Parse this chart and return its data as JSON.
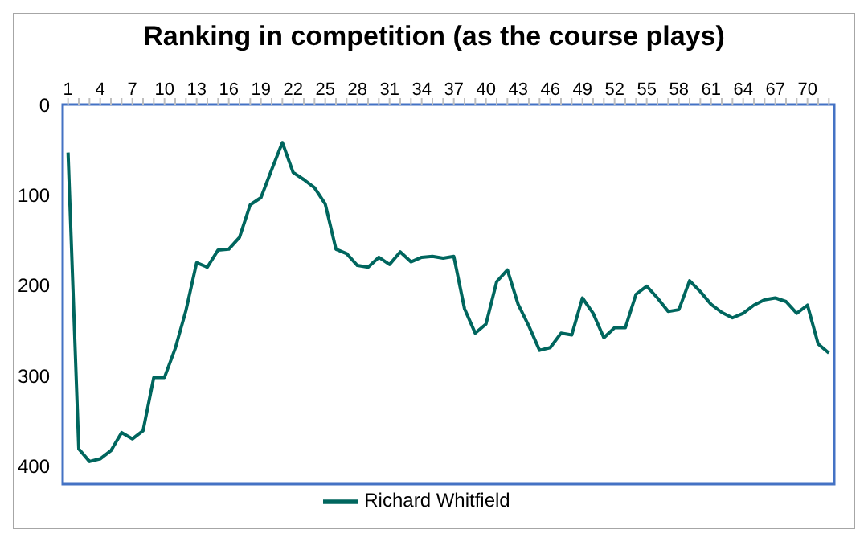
{
  "chart_data": {
    "type": "line",
    "title": "Ranking in competition (as the course plays)",
    "categories": [
      "1",
      null,
      null,
      "4",
      null,
      null,
      "7",
      null,
      null,
      "10",
      null,
      null,
      "13",
      null,
      null,
      "16",
      null,
      null,
      "19",
      null,
      null,
      "22",
      null,
      null,
      "25",
      null,
      null,
      "28",
      null,
      null,
      "31",
      null,
      null,
      "34",
      null,
      null,
      "37",
      null,
      null,
      "40",
      null,
      null,
      "43",
      null,
      null,
      "46",
      null,
      null,
      "49",
      null,
      null,
      "52",
      null,
      null,
      "55",
      null,
      null,
      "58",
      null,
      null,
      "61",
      null,
      null,
      "64",
      null,
      null,
      "67",
      null,
      null,
      "70",
      null,
      null
    ],
    "series": [
      {
        "name": "Richard Whitfield",
        "color": "#00665e",
        "values": [
          53,
          381,
          395,
          392,
          383,
          363,
          370,
          361,
          302,
          302,
          270,
          228,
          175,
          180,
          161,
          160,
          147,
          111,
          103,
          72,
          42,
          75,
          83,
          92,
          110,
          160,
          165,
          178,
          180,
          169,
          177,
          163,
          174,
          169,
          168,
          170,
          168,
          226,
          253,
          243,
          196,
          183,
          221,
          245,
          272,
          269,
          253,
          255,
          214,
          231,
          258,
          247,
          247,
          210,
          201,
          214,
          229,
          227,
          195,
          207,
          221,
          230,
          236,
          231,
          222,
          216,
          214,
          218,
          231,
          222,
          265,
          275
        ]
      }
    ],
    "ylim": [
      420,
      0
    ],
    "yticks": [
      0,
      100,
      200,
      300,
      400
    ],
    "legend": "bottom",
    "marker": "none",
    "line_style": "solid"
  }
}
